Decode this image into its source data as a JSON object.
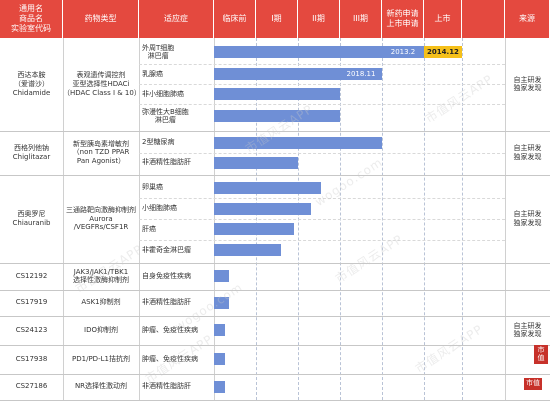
{
  "header": {
    "col_drug": "通用名\n商品名\n实验室代码",
    "col_moa": "药物类型",
    "col_ind": "适应症",
    "phases": [
      "临床前",
      "I期",
      "II期",
      "III期",
      "新药申请\n上市申请",
      "上市"
    ],
    "col_src": "来源"
  },
  "rows": [
    {
      "drug": "西达本胺\n（爱谱沙）\nChidamide",
      "moa": "表观遗传调控剂\n亚型选择性HDACi\n（HDAC Class I & 10）",
      "source": "自主研发\n独家发现",
      "indications": [
        {
          "name": "外周T细胞\n淋巴瘤",
          "stage": 5,
          "tags": [
            {
              "text": "2013.2",
              "color": "blue"
            },
            {
              "text": "2014.12",
              "color": "yellow"
            }
          ]
        },
        {
          "name": "乳腺癌",
          "stage": 4,
          "tags": [
            {
              "text": "2018.11",
              "color": "blue"
            }
          ]
        },
        {
          "name": "非小细胞肺癌",
          "stage": 3,
          "tags": []
        },
        {
          "name": "弥漫性大B细胞\n淋巴瘤",
          "stage": 3,
          "tags": []
        }
      ]
    },
    {
      "drug": "西格列他钠\nChiglitazar",
      "moa": "新型胰岛素增敏剂\n（non TZD PPAR\nPan Agonist）",
      "source": "自主研发\n独家发现",
      "indications": [
        {
          "name": "2型糖尿病",
          "stage": 4,
          "tags": []
        },
        {
          "name": "非酒精性脂肪肝",
          "stage": 2,
          "tags": []
        }
      ]
    },
    {
      "drug": "西奥罗尼\nChiauranib",
      "moa": "三通路靶向激酶抑制剂\nAurora /VEGFRs/CSF1R",
      "source": "自主研发\n独家发现",
      "indications": [
        {
          "name": "卵巢癌",
          "stage": 2.55,
          "tags": []
        },
        {
          "name": "小细胞肺癌",
          "stage": 2.3,
          "tags": []
        },
        {
          "name": "肝癌",
          "stage": 1.9,
          "tags": []
        },
        {
          "name": "非霍奇金淋巴瘤",
          "stage": 1.6,
          "tags": []
        }
      ]
    },
    {
      "drug": "CS12192",
      "moa": "JAK3/JAK1/TBK1\n选择性激酶抑制剂",
      "source": "",
      "indications": [
        {
          "name": "自身免疫性疾病",
          "stage": 0.35,
          "tags": []
        }
      ]
    },
    {
      "drug": "CS17919",
      "moa": "ASK1抑制剂",
      "source": "",
      "indications": [
        {
          "name": "非酒精性脂肪肝",
          "stage": 0.35,
          "tags": []
        }
      ]
    },
    {
      "drug": "CS24123",
      "moa": "IDO抑制剂",
      "source": "自主研发\n独家发现",
      "indications": [
        {
          "name": "肿瘤、免疫性疾病",
          "stage": 0.25,
          "tags": []
        }
      ]
    },
    {
      "drug": "CS17938",
      "moa": "PD1/PD-L1拮抗剂",
      "source": "",
      "indications": [
        {
          "name": "肿瘤、免疫性疾病",
          "stage": 0.25,
          "tags": []
        }
      ]
    },
    {
      "drug": "CS27186",
      "moa": "NR选择性激动剂",
      "source": "",
      "indications": [
        {
          "name": "非酒精性脂肪肝",
          "stage": 0.25,
          "tags": []
        }
      ]
    }
  ],
  "watermark": "市值风云APP",
  "watermark_url": "wogoo.com",
  "seal_text": "市值",
  "colors": {
    "header": "#e4493f",
    "bar": "#6f8fd6",
    "highlight": "#f5c01a"
  }
}
